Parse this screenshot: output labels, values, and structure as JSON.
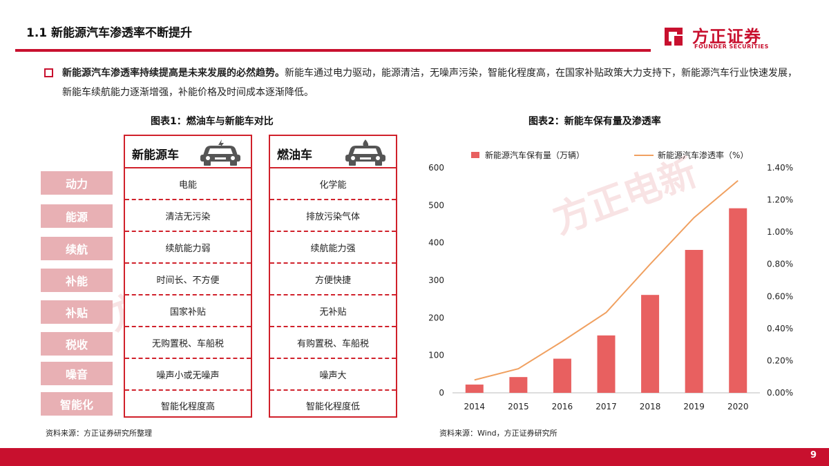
{
  "header": {
    "title": "1.1 新能源汽车渗透率不断提升",
    "logo_cn": "方正证券",
    "logo_en": "FOUNDER SECURITIES"
  },
  "bullet": {
    "bold": "新能源汽车渗透率持续提高是未来发展的必然趋势。",
    "text": "新能车通过电力驱动，能源清洁，无噪声污染，智能化程度高，在国家补贴政策大力支持下，新能源汽车行业快速发展，新能车续航能力逐渐增强，补能价格及时间成本逐渐降低。"
  },
  "figure1": {
    "title": "图表1：燃油车与新能车对比",
    "labels": [
      "动力",
      "能源",
      "续航",
      "补能",
      "补贴",
      "税收",
      "噪音",
      "智能化"
    ],
    "nev": {
      "header": "新能源车",
      "rows": [
        "电能",
        "清洁无污染",
        "续航能力弱",
        "时间长、不方便",
        "国家补贴",
        "无购置税、车船税",
        "噪声小或无噪声",
        "智能化程度高"
      ]
    },
    "ice": {
      "header": "燃油车",
      "rows": [
        "化学能",
        "排放污染气体",
        "续航能力强",
        "方便快捷",
        "无补贴",
        "有购置税、车船税",
        "噪声大",
        "智能化程度低"
      ]
    },
    "source": "资料来源：方正证券研究所整理"
  },
  "figure2": {
    "title": "图表2：新能车保有量及渗透率",
    "source": "资料来源：Wind，方正证券研究所"
  },
  "chart_data": {
    "type": "bar",
    "categories": [
      "2014",
      "2015",
      "2016",
      "2017",
      "2018",
      "2019",
      "2020"
    ],
    "series": [
      {
        "name": "新能源汽车保有量（万辆）",
        "type": "bar",
        "axis": "left",
        "color": "#e86060",
        "values": [
          22,
          42,
          91,
          153,
          261,
          381,
          492
        ]
      },
      {
        "name": "新能源汽车渗透率（%）",
        "type": "line",
        "axis": "right",
        "color": "#f0a060",
        "values": [
          0.08,
          0.15,
          0.32,
          0.5,
          0.8,
          1.09,
          1.32
        ]
      }
    ],
    "left_axis": {
      "ylim": [
        0,
        600
      ],
      "ticks": [
        "0",
        "100",
        "200",
        "300",
        "400",
        "500",
        "600"
      ]
    },
    "right_axis": {
      "ylim": [
        0,
        1.4
      ],
      "ticks": [
        "0.00%",
        "0.20%",
        "0.40%",
        "0.60%",
        "0.80%",
        "1.00%",
        "1.20%",
        "1.40%"
      ]
    },
    "legend_position": "top",
    "grid": false
  },
  "watermark": "方正电新",
  "page_number": "9",
  "colors": {
    "brand_red": "#c8102e",
    "label_pink": "#e8b0b4",
    "bar": "#e86060",
    "line": "#f0a060"
  },
  "icons": {
    "logo": "founder-logo-mark",
    "car": "car-icon"
  }
}
